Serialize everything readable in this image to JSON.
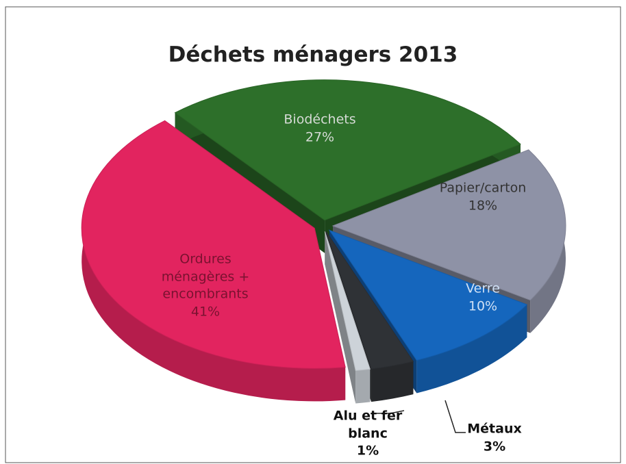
{
  "chart_data": {
    "type": "pie",
    "title": "Déchets ménagers 2013",
    "categories": [
      "Biodéchets",
      "Papier/carton",
      "Verre",
      "Métaux",
      "Alu et fer blanc",
      "Ordures ménagères + encombrants"
    ],
    "values": [
      27,
      18,
      10,
      3,
      1,
      41
    ],
    "value_labels": [
      "27%",
      "18%",
      "10%",
      "3%",
      "1%",
      "41%"
    ],
    "colors": [
      "#2d6f2a",
      "#8e92a6",
      "#1566bd",
      "#2f3236",
      "#cdd3d9",
      "#e2245f"
    ]
  }
}
